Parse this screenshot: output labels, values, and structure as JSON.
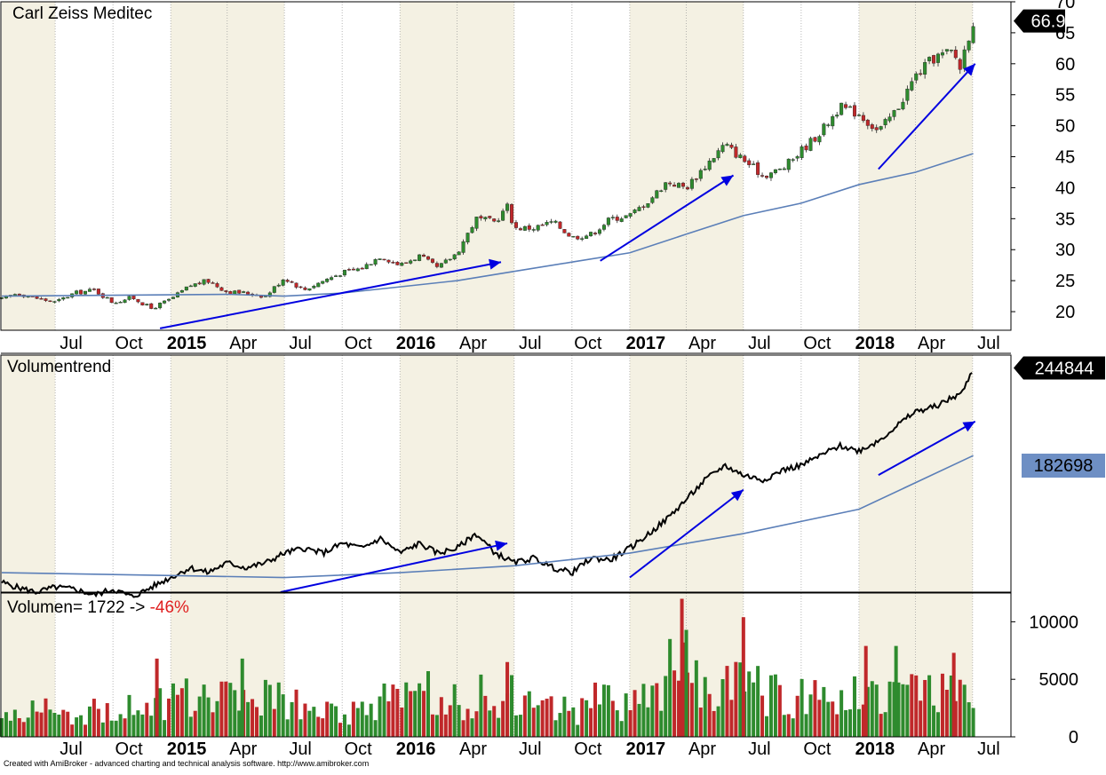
{
  "footer_text": "Created with AmiBroker - advanced charting and technical analysis software. http://www.amibroker.com",
  "colors": {
    "up": "#2e8b2e",
    "down": "#c0282a",
    "ma": "#5b7fb8",
    "arrow": "#0000e0",
    "band_light": "#f4f1e3",
    "band_white": "#ffffff",
    "ma_badge": "#6e8fc4"
  },
  "chart_data": [
    {
      "type": "candlestick",
      "title": "Carl Zeiss Meditec",
      "last_value_label": "66.9",
      "ylim": [
        17,
        70
      ],
      "yticks": [
        20,
        25,
        30,
        35,
        40,
        45,
        50,
        55,
        60,
        65,
        70
      ],
      "xlim": [
        "2014-04-07",
        "2018-08-31"
      ],
      "x_tick_labels": [
        {
          "label": "Jul",
          "date": "2014-07-01",
          "bold": false
        },
        {
          "label": "Oct",
          "date": "2014-10-01",
          "bold": false
        },
        {
          "label": "2015",
          "date": "2015-01-01",
          "bold": true
        },
        {
          "label": "Apr",
          "date": "2015-04-01",
          "bold": false
        },
        {
          "label": "Jul",
          "date": "2015-07-01",
          "bold": false
        },
        {
          "label": "Oct",
          "date": "2015-10-01",
          "bold": false
        },
        {
          "label": "2016",
          "date": "2016-01-01",
          "bold": true
        },
        {
          "label": "Apr",
          "date": "2016-04-01",
          "bold": false
        },
        {
          "label": "Jul",
          "date": "2016-07-01",
          "bold": false
        },
        {
          "label": "Oct",
          "date": "2016-10-01",
          "bold": false
        },
        {
          "label": "2017",
          "date": "2017-01-01",
          "bold": true
        },
        {
          "label": "Apr",
          "date": "2017-04-01",
          "bold": false
        },
        {
          "label": "Jul",
          "date": "2017-07-01",
          "bold": false
        },
        {
          "label": "Oct",
          "date": "2017-10-01",
          "bold": false
        },
        {
          "label": "2018",
          "date": "2018-01-01",
          "bold": true
        },
        {
          "label": "Apr",
          "date": "2018-04-01",
          "bold": false
        },
        {
          "label": "Jul",
          "date": "2018-07-01",
          "bold": false
        }
      ],
      "close_path": [
        [
          "2014-04-07",
          22.0
        ],
        [
          "2014-05-01",
          23.0
        ],
        [
          "2014-06-01",
          22.2
        ],
        [
          "2014-07-01",
          21.5
        ],
        [
          "2014-08-01",
          23.0
        ],
        [
          "2014-09-01",
          23.5
        ],
        [
          "2014-10-01",
          21.5
        ],
        [
          "2014-11-01",
          22.3
        ],
        [
          "2014-12-01",
          20.5
        ],
        [
          "2015-01-01",
          22.0
        ],
        [
          "2015-02-01",
          24.2
        ],
        [
          "2015-03-01",
          25.0
        ],
        [
          "2015-04-01",
          23.2
        ],
        [
          "2015-05-01",
          23.0
        ],
        [
          "2015-06-01",
          22.5
        ],
        [
          "2015-07-01",
          25.5
        ],
        [
          "2015-08-01",
          23.5
        ],
        [
          "2015-09-01",
          25.0
        ],
        [
          "2015-10-01",
          26.3
        ],
        [
          "2015-11-01",
          27.0
        ],
        [
          "2015-12-01",
          29.0
        ],
        [
          "2016-01-01",
          27.5
        ],
        [
          "2016-02-01",
          29.0
        ],
        [
          "2016-03-01",
          27.0
        ],
        [
          "2016-04-01",
          29.5
        ],
        [
          "2016-05-01",
          35.0
        ],
        [
          "2016-06-01",
          34.5
        ],
        [
          "2016-06-20",
          37.0
        ],
        [
          "2016-07-01",
          33.5
        ],
        [
          "2016-08-01",
          33.5
        ],
        [
          "2016-09-01",
          34.5
        ],
        [
          "2016-10-01",
          32.0
        ],
        [
          "2016-11-01",
          32.5
        ],
        [
          "2016-12-01",
          35.0
        ],
        [
          "2017-01-01",
          35.5
        ],
        [
          "2017-02-01",
          38.0
        ],
        [
          "2017-03-01",
          41.0
        ],
        [
          "2017-04-01",
          40.0
        ],
        [
          "2017-05-01",
          43.5
        ],
        [
          "2017-06-01",
          47.0
        ],
        [
          "2017-07-01",
          44.5
        ],
        [
          "2017-08-01",
          42.0
        ],
        [
          "2017-09-01",
          43.0
        ],
        [
          "2017-10-01",
          46.0
        ],
        [
          "2017-11-01",
          49.0
        ],
        [
          "2017-12-01",
          53.0
        ],
        [
          "2018-01-01",
          52.0
        ],
        [
          "2018-02-01",
          49.0
        ],
        [
          "2018-03-01",
          52.5
        ],
        [
          "2018-04-01",
          58.0
        ],
        [
          "2018-05-01",
          61.0
        ],
        [
          "2018-06-01",
          62.0
        ],
        [
          "2018-06-10",
          59.0
        ],
        [
          "2018-06-20",
          63.0
        ],
        [
          "2018-07-02",
          66.9
        ]
      ],
      "moving_average": [
        [
          "2014-04-07",
          22.5
        ],
        [
          "2015-04-01",
          22.8
        ],
        [
          "2015-07-01",
          22.5
        ],
        [
          "2015-10-01",
          23.0
        ],
        [
          "2016-01-01",
          24.0
        ],
        [
          "2016-04-01",
          25.0
        ],
        [
          "2016-07-01",
          26.5
        ],
        [
          "2016-10-01",
          28.0
        ],
        [
          "2017-01-01",
          29.5
        ],
        [
          "2017-04-01",
          32.5
        ],
        [
          "2017-07-01",
          35.5
        ],
        [
          "2017-10-01",
          37.5
        ],
        [
          "2018-01-01",
          40.5
        ],
        [
          "2018-04-01",
          42.5
        ],
        [
          "2018-07-02",
          45.5
        ]
      ],
      "arrows": [
        {
          "from": [
            "2014-12-15",
            17.3
          ],
          "to": [
            "2016-06-10",
            28.0
          ]
        },
        {
          "from": [
            "2016-11-15",
            28.2
          ],
          "to": [
            "2017-06-15",
            42.0
          ]
        },
        {
          "from": [
            "2018-02-01",
            43.0
          ],
          "to": [
            "2018-07-05",
            60.0
          ]
        }
      ]
    },
    {
      "type": "line",
      "title": "Volumentrend",
      "last_value_label": "244844",
      "ma_value_label": "182698",
      "ylim": [
        15000,
        258000
      ],
      "series_path": [
        [
          "2014-04-07",
          25000
        ],
        [
          "2014-05-01",
          20000
        ],
        [
          "2014-06-01",
          15000
        ],
        [
          "2014-07-01",
          20000
        ],
        [
          "2014-08-01",
          18000
        ],
        [
          "2014-09-01",
          12000
        ],
        [
          "2014-10-01",
          18000
        ],
        [
          "2014-11-01",
          10000
        ],
        [
          "2014-12-01",
          20000
        ],
        [
          "2015-01-01",
          30000
        ],
        [
          "2015-02-01",
          40000
        ],
        [
          "2015-03-01",
          35000
        ],
        [
          "2015-04-01",
          45000
        ],
        [
          "2015-05-01",
          40000
        ],
        [
          "2015-06-01",
          45000
        ],
        [
          "2015-07-01",
          55000
        ],
        [
          "2015-08-01",
          60000
        ],
        [
          "2015-09-01",
          55000
        ],
        [
          "2015-10-01",
          65000
        ],
        [
          "2015-11-01",
          60000
        ],
        [
          "2015-12-01",
          70000
        ],
        [
          "2016-01-01",
          55000
        ],
        [
          "2016-02-01",
          65000
        ],
        [
          "2016-03-01",
          55000
        ],
        [
          "2016-04-01",
          60000
        ],
        [
          "2016-05-01",
          75000
        ],
        [
          "2016-06-01",
          55000
        ],
        [
          "2016-07-01",
          45000
        ],
        [
          "2016-08-01",
          50000
        ],
        [
          "2016-09-01",
          40000
        ],
        [
          "2016-10-01",
          35000
        ],
        [
          "2016-11-01",
          50000
        ],
        [
          "2016-12-01",
          48000
        ],
        [
          "2017-01-01",
          60000
        ],
        [
          "2017-02-01",
          75000
        ],
        [
          "2017-03-01",
          90000
        ],
        [
          "2017-04-01",
          110000
        ],
        [
          "2017-05-01",
          130000
        ],
        [
          "2017-06-01",
          145000
        ],
        [
          "2017-07-01",
          135000
        ],
        [
          "2017-08-01",
          130000
        ],
        [
          "2017-09-01",
          140000
        ],
        [
          "2017-10-01",
          145000
        ],
        [
          "2017-11-01",
          155000
        ],
        [
          "2017-12-01",
          165000
        ],
        [
          "2018-01-01",
          160000
        ],
        [
          "2018-02-01",
          170000
        ],
        [
          "2018-03-01",
          185000
        ],
        [
          "2018-04-01",
          200000
        ],
        [
          "2018-05-01",
          205000
        ],
        [
          "2018-06-01",
          215000
        ],
        [
          "2018-06-15",
          220000
        ],
        [
          "2018-07-02",
          244844
        ]
      ],
      "moving_average": [
        [
          "2014-04-07",
          35000
        ],
        [
          "2015-01-01",
          32000
        ],
        [
          "2015-07-01",
          30000
        ],
        [
          "2016-01-01",
          35000
        ],
        [
          "2016-07-01",
          42000
        ],
        [
          "2017-01-01",
          55000
        ],
        [
          "2017-07-01",
          75000
        ],
        [
          "2018-01-01",
          100000
        ],
        [
          "2018-07-02",
          155000
        ]
      ],
      "arrows": [
        {
          "from": [
            "2015-06-25",
            15000
          ],
          "to": [
            "2016-06-20",
            65000
          ]
        },
        {
          "from": [
            "2017-01-01",
            30000
          ],
          "to": [
            "2017-07-01",
            120000
          ]
        },
        {
          "from": [
            "2018-02-01",
            135000
          ],
          "to": [
            "2018-07-05",
            190000
          ]
        }
      ]
    },
    {
      "type": "bar",
      "title_prefix": "Volumen= 1722 -> ",
      "title_change": "-46%",
      "ylim": [
        0,
        12500
      ],
      "yticks": [
        0,
        5000,
        10000
      ],
      "approximate_bar_values_by_month": [
        {
          "month": "2014-04",
          "value": 1900
        },
        {
          "month": "2014-05",
          "value": 2200
        },
        {
          "month": "2014-06",
          "value": 2400
        },
        {
          "month": "2014-07",
          "value": 2000
        },
        {
          "month": "2014-08",
          "value": 2300
        },
        {
          "month": "2014-09",
          "value": 2200
        },
        {
          "month": "2014-10",
          "value": 3000
        },
        {
          "month": "2014-11",
          "value": 2000
        },
        {
          "month": "2014-12",
          "value": 2800
        },
        {
          "month": "2015-01",
          "value": 3300
        },
        {
          "month": "2015-02",
          "value": 3000
        },
        {
          "month": "2015-03",
          "value": 3200
        },
        {
          "month": "2015-04",
          "value": 3100
        },
        {
          "month": "2015-05",
          "value": 3500
        },
        {
          "month": "2015-06",
          "value": 3600
        },
        {
          "month": "2015-07",
          "value": 2700
        },
        {
          "month": "2015-08",
          "value": 2500
        },
        {
          "month": "2015-09",
          "value": 2400
        },
        {
          "month": "2015-10",
          "value": 2300
        },
        {
          "month": "2015-11",
          "value": 2400
        },
        {
          "month": "2015-12",
          "value": 3000
        },
        {
          "month": "2016-01",
          "value": 3600
        },
        {
          "month": "2016-02",
          "value": 3800
        },
        {
          "month": "2016-03",
          "value": 3000
        },
        {
          "month": "2016-04",
          "value": 3100
        },
        {
          "month": "2016-05",
          "value": 3600
        },
        {
          "month": "2016-06",
          "value": 3500
        },
        {
          "month": "2016-07",
          "value": 2900
        },
        {
          "month": "2016-08",
          "value": 2600
        },
        {
          "month": "2016-09",
          "value": 2500
        },
        {
          "month": "2016-10",
          "value": 2300
        },
        {
          "month": "2016-11",
          "value": 3100
        },
        {
          "month": "2016-12",
          "value": 2700
        },
        {
          "month": "2017-01",
          "value": 3200
        },
        {
          "month": "2017-02",
          "value": 4000
        },
        {
          "month": "2017-03",
          "value": 6200
        },
        {
          "month": "2017-04",
          "value": 4800
        },
        {
          "month": "2017-05",
          "value": 4500
        },
        {
          "month": "2017-06",
          "value": 4300
        },
        {
          "month": "2017-07",
          "value": 4400
        },
        {
          "month": "2017-08",
          "value": 3500
        },
        {
          "month": "2017-09",
          "value": 3500
        },
        {
          "month": "2017-10",
          "value": 3300
        },
        {
          "month": "2017-11",
          "value": 3600
        },
        {
          "month": "2017-12",
          "value": 3900
        },
        {
          "month": "2018-01",
          "value": 4200
        },
        {
          "month": "2018-02",
          "value": 4300
        },
        {
          "month": "2018-03",
          "value": 4000
        },
        {
          "month": "2018-04",
          "value": 3500
        },
        {
          "month": "2018-05",
          "value": 3600
        },
        {
          "month": "2018-06",
          "value": 4000
        },
        {
          "month": "2018-07",
          "value": 1722
        }
      ],
      "notable_spikes": [
        {
          "date": "2014-12-10",
          "value": 6800,
          "color": "down"
        },
        {
          "date": "2015-04-25",
          "value": 6800,
          "color": "up"
        },
        {
          "date": "2016-06-20",
          "value": 6500,
          "color": "down"
        },
        {
          "date": "2017-03-25",
          "value": 12000,
          "color": "down"
        },
        {
          "date": "2017-04-01",
          "value": 9300,
          "color": "up"
        },
        {
          "date": "2017-07-01",
          "value": 10400,
          "color": "down"
        },
        {
          "date": "2018-01-12",
          "value": 7900,
          "color": "down"
        },
        {
          "date": "2018-03-01",
          "value": 7900,
          "color": "up"
        },
        {
          "date": "2018-06-01",
          "value": 7300,
          "color": "down"
        }
      ]
    }
  ]
}
